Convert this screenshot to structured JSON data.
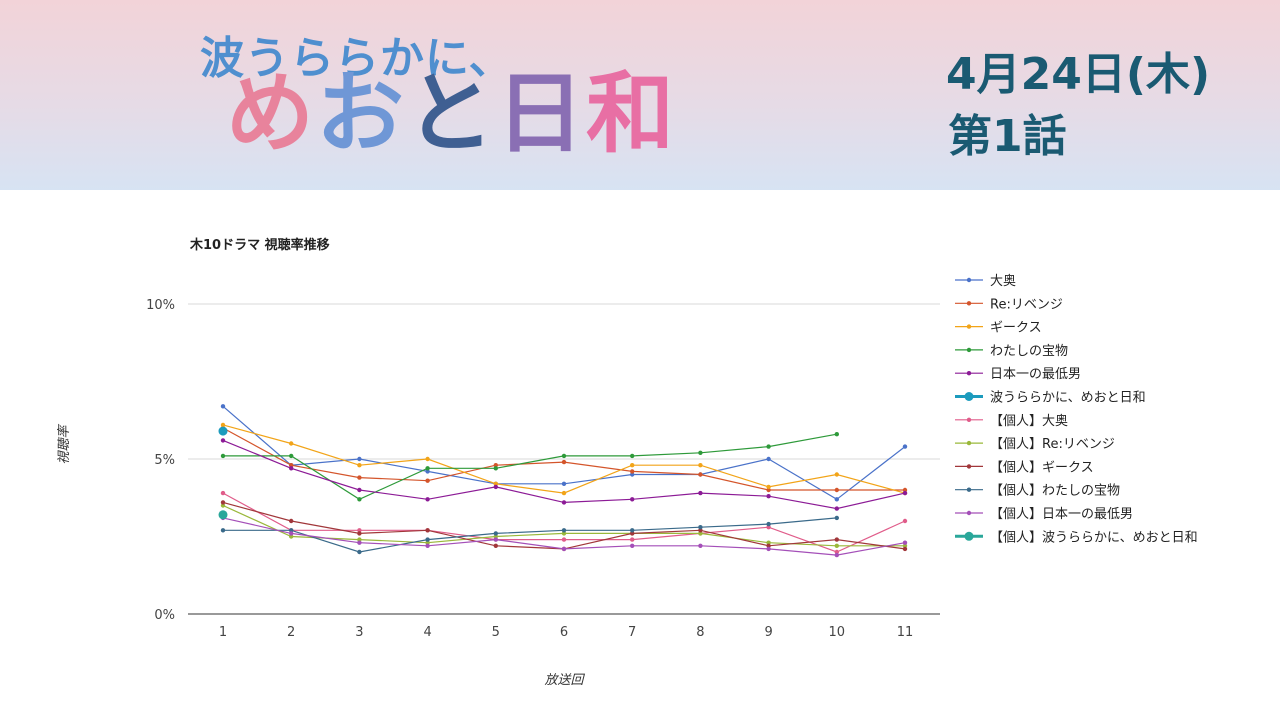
{
  "banner": {
    "logo_line1": "波うららかに、",
    "logo_chars": [
      {
        "char": "め",
        "color": "#e8839c"
      },
      {
        "char": "お",
        "color": "#6f97d6"
      },
      {
        "char": "と",
        "color": "#3f5f92"
      },
      {
        "char": "日",
        "color": "#8a6fb4"
      },
      {
        "char": "和",
        "color": "#e86fa4"
      }
    ],
    "date": "4月24日(木)",
    "episode": "第1話"
  },
  "chart_data": {
    "type": "line",
    "title": "木10ドラマ 視聴率推移",
    "xlabel": "放送回",
    "ylabel": "視聴率",
    "x": [
      1,
      2,
      3,
      4,
      5,
      6,
      7,
      8,
      9,
      10,
      11
    ],
    "y_ticks": [
      "0%",
      "5%",
      "10%"
    ],
    "ylim": [
      0,
      10
    ],
    "grid": true,
    "legend_position": "right",
    "series": [
      {
        "name": "大奥",
        "color": "#4a72c9",
        "values": [
          6.7,
          4.8,
          5.0,
          4.6,
          4.2,
          4.2,
          4.5,
          4.5,
          5.0,
          3.7,
          5.4
        ]
      },
      {
        "name": "Re:リベンジ",
        "color": "#d4552b",
        "values": [
          6.0,
          4.8,
          4.4,
          4.3,
          4.8,
          4.9,
          4.6,
          4.5,
          4.0,
          4.0,
          4.0
        ]
      },
      {
        "name": "ギークス",
        "color": "#f2a418",
        "values": [
          6.1,
          5.5,
          4.8,
          5.0,
          4.2,
          3.9,
          4.8,
          4.8,
          4.1,
          4.5,
          3.9
        ]
      },
      {
        "name": "わたしの宝物",
        "color": "#2e9a3a",
        "values": [
          5.1,
          5.1,
          3.7,
          4.7,
          4.7,
          5.1,
          5.1,
          5.2,
          5.4,
          5.8,
          null
        ]
      },
      {
        "name": "日本一の最低男",
        "color": "#8c1b96",
        "values": [
          5.6,
          4.7,
          4.0,
          3.7,
          4.1,
          3.6,
          3.7,
          3.9,
          3.8,
          3.4,
          3.9
        ]
      },
      {
        "name": "波うららかに、めおと日和",
        "color": "#1c9bbd",
        "highlight": true,
        "values": [
          5.9,
          null,
          null,
          null,
          null,
          null,
          null,
          null,
          null,
          null,
          null
        ]
      },
      {
        "name": "【個人】大奥",
        "color": "#e05c8a",
        "values": [
          3.9,
          2.7,
          2.7,
          2.7,
          2.4,
          2.4,
          2.4,
          2.6,
          2.8,
          2.0,
          3.0
        ]
      },
      {
        "name": "【個人】Re:リベンジ",
        "color": "#9ab83a",
        "values": [
          3.5,
          2.5,
          2.4,
          2.3,
          2.5,
          2.6,
          2.6,
          2.6,
          2.3,
          2.2,
          2.2
        ]
      },
      {
        "name": "【個人】ギークス",
        "color": "#a1373a",
        "values": [
          3.6,
          3.0,
          2.6,
          2.7,
          2.2,
          2.1,
          2.6,
          2.7,
          2.2,
          2.4,
          2.1
        ]
      },
      {
        "name": "【個人】わたしの宝物",
        "color": "#3a6a8a",
        "values": [
          2.7,
          2.7,
          2.0,
          2.4,
          2.6,
          2.7,
          2.7,
          2.8,
          2.9,
          3.1,
          null
        ]
      },
      {
        "name": "【個人】日本一の最低男",
        "color": "#a44fb8",
        "values": [
          3.1,
          2.6,
          2.3,
          2.2,
          2.4,
          2.1,
          2.2,
          2.2,
          2.1,
          1.9,
          2.3
        ]
      },
      {
        "name": "【個人】波うららかに、めおと日和",
        "color": "#2aa79a",
        "highlight": true,
        "values": [
          3.2,
          null,
          null,
          null,
          null,
          null,
          null,
          null,
          null,
          null,
          null
        ]
      }
    ]
  }
}
